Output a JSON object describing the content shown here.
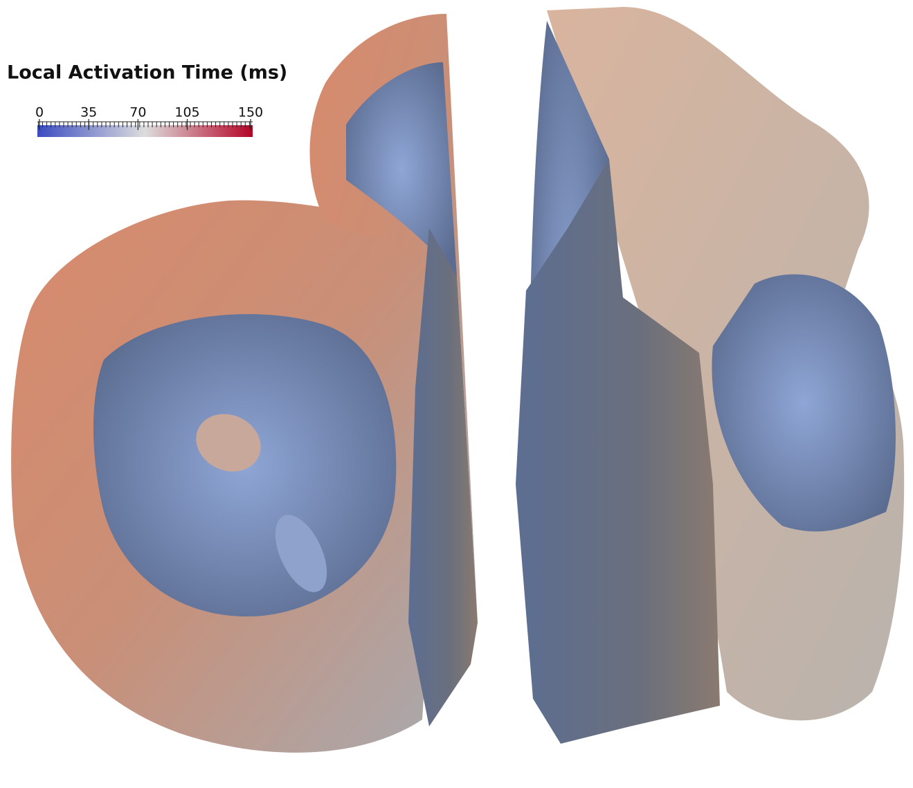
{
  "colorbar": {
    "title": "Local Activation Time (ms)",
    "range": [
      0,
      150
    ],
    "ticks": [
      0,
      35,
      70,
      105,
      150
    ],
    "colors": [
      "#3b4cc0",
      "#dddddd",
      "#b40426"
    ]
  }
}
